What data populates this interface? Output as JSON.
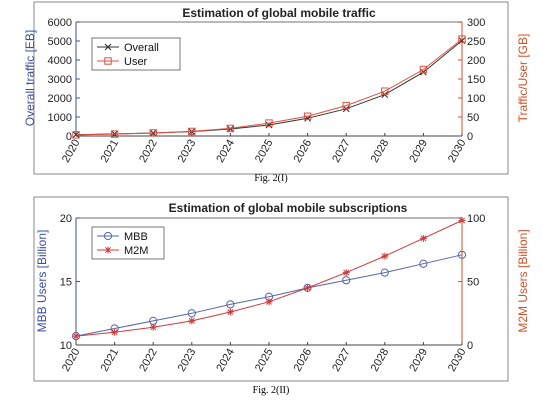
{
  "figures": [
    {
      "caption": "Fig. 2(I)"
    },
    {
      "caption": "Fig. 2(II)"
    }
  ],
  "colors": {
    "left_axis": "#3a4fa0",
    "right_axis": "#d0502a",
    "series1_line": "#333333",
    "series2_line": "#e05040",
    "mbb": "#5566aa",
    "m2m": "#d03a3a"
  },
  "chart_data": [
    {
      "type": "line",
      "title": "Estimation of global mobile traffic",
      "x": [
        "2020",
        "2021",
        "2022",
        "2023",
        "2024",
        "2025",
        "2026",
        "2027",
        "2028",
        "2029",
        "2030"
      ],
      "xlabel": "",
      "ylabel_left": "Overall traffic [EB]",
      "ylabel_right": "Traffic/User [GB]",
      "ylim_left": [
        0,
        6000
      ],
      "ylim_right": [
        0,
        300
      ],
      "yticks_left": [
        "0",
        "1000",
        "2000",
        "3000",
        "4000",
        "5000",
        "6000"
      ],
      "yticks_right": [
        "0",
        "50",
        "100",
        "150",
        "200",
        "250",
        "300"
      ],
      "legend_position": "top-left",
      "series": [
        {
          "name": "Overall",
          "axis": "left",
          "marker": "x",
          "values": [
            70,
            110,
            160,
            230,
            370,
            580,
            930,
            1430,
            2180,
            3360,
            5020
          ]
        },
        {
          "name": "User",
          "axis": "right",
          "marker": "square",
          "values": [
            3,
            5,
            8,
            12,
            20,
            34,
            52,
            80,
            118,
            175,
            255
          ]
        }
      ]
    },
    {
      "type": "line",
      "title": "Estimation of global mobile subscriptions",
      "x": [
        "2020",
        "2021",
        "2022",
        "2023",
        "2024",
        "2025",
        "2026",
        "2027",
        "2028",
        "2029",
        "2030"
      ],
      "xlabel": "",
      "ylabel_left": "MBB Users [Billion]",
      "ylabel_right": "M2M Users [Billion]",
      "ylim_left": [
        10,
        20
      ],
      "ylim_right": [
        0,
        100
      ],
      "yticks_left": [
        "10",
        "15",
        "20"
      ],
      "yticks_right": [
        "0",
        "50",
        "100"
      ],
      "legend_position": "top-left",
      "series": [
        {
          "name": "MBB",
          "axis": "left",
          "marker": "circle",
          "values": [
            10.7,
            11.3,
            11.9,
            12.5,
            13.2,
            13.8,
            14.5,
            15.1,
            15.7,
            16.4,
            17.1
          ]
        },
        {
          "name": "M2M",
          "axis": "right",
          "marker": "star",
          "values": [
            7,
            10,
            14,
            19,
            26,
            34,
            45,
            57,
            70,
            84,
            98
          ]
        }
      ]
    }
  ]
}
